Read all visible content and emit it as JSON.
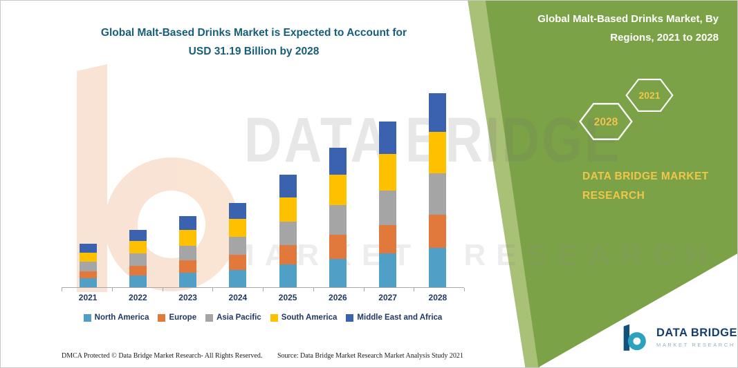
{
  "header": {
    "title_line1": "Global Malt-Based Drinks Market is Expected to Account for",
    "title_line2": "USD 31.19 Billion by 2028"
  },
  "side_panel": {
    "title_line1": "Global Malt-Based Drinks Market, By",
    "title_line2": "Regions, 2021 to 2028",
    "hexagons": [
      "2028",
      "2021"
    ],
    "brand_line1": "DATA BRIDGE MARKET",
    "brand_line2": "RESEARCH",
    "panel_color": "#7ca247",
    "accent_yellow": "#f0c64a"
  },
  "watermark": {
    "line1": "DATA BRIDGE",
    "line2": "MARKET RESEARCH"
  },
  "chart_data": {
    "type": "bar",
    "stacked": true,
    "title": "Global Malt-Based Drinks Market, By Regions, 2021 to 2028",
    "unit": "USD Billion",
    "categories": [
      "2021",
      "2022",
      "2023",
      "2024",
      "2025",
      "2026",
      "2027",
      "2028"
    ],
    "series": [
      {
        "name": "North America",
        "color": "#4f9fc6",
        "values": [
          1.4,
          1.9,
          2.3,
          2.8,
          3.7,
          4.6,
          5.4,
          6.3
        ]
      },
      {
        "name": "Europe",
        "color": "#e2793c",
        "values": [
          1.2,
          1.6,
          2.0,
          2.4,
          3.1,
          3.9,
          4.6,
          5.4
        ]
      },
      {
        "name": "Asia Pacific",
        "color": "#a5a5a5",
        "values": [
          1.5,
          1.9,
          2.4,
          2.9,
          3.8,
          4.7,
          5.6,
          6.6
        ]
      },
      {
        "name": "South America",
        "color": "#ffc000",
        "values": [
          1.5,
          2.0,
          2.5,
          2.9,
          3.9,
          4.9,
          5.8,
          6.7
        ]
      },
      {
        "name": "Middle East and Africa",
        "color": "#3a62ae",
        "values": [
          1.4,
          1.8,
          2.2,
          2.6,
          3.6,
          4.4,
          5.3,
          6.19
        ]
      }
    ],
    "totals": [
      7.0,
      9.2,
      11.4,
      13.6,
      18.1,
      22.5,
      26.7,
      31.19
    ],
    "ylim": [
      0,
      32
    ],
    "grid": false,
    "legend_position": "bottom"
  },
  "footer": {
    "dmca": "DMCA Protected © Data Bridge Market Research-  All Rights Reserved.",
    "source": "Source: Data Bridge Market Research  Market Analysis Study 2021"
  },
  "logo": {
    "brand": "DATA BRIDGE",
    "subtitle": "MARKET RESEARCH"
  }
}
